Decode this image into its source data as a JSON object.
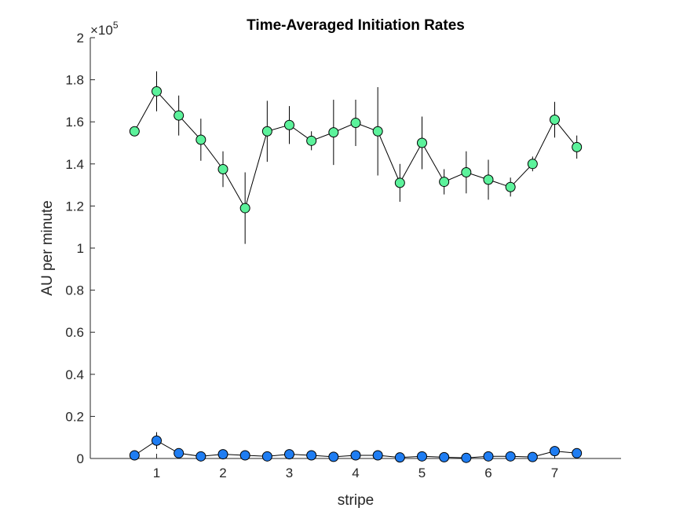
{
  "chart_data": {
    "type": "scatter",
    "title": "Time-Averaged Initiation Rates",
    "xlabel": "stripe",
    "ylabel": "AU per minute",
    "y_exponent_label": "×10",
    "y_exponent": "5",
    "xlim": [
      0,
      8
    ],
    "ylim": [
      0,
      200000
    ],
    "x_ticks": [
      1,
      2,
      3,
      4,
      5,
      6,
      7
    ],
    "x_tick_labels": [
      "1",
      "2",
      "3",
      "4",
      "5",
      "6",
      "7"
    ],
    "y_ticks": [
      0,
      20000,
      40000,
      60000,
      80000,
      100000,
      120000,
      140000,
      160000,
      180000,
      200000
    ],
    "y_tick_labels": [
      "0",
      "0.2",
      "0.4",
      "0.6",
      "0.8",
      "1",
      "1.2",
      "1.4",
      "1.6",
      "1.8",
      "2"
    ],
    "grid": false,
    "legend": "none",
    "x": [
      0.6667,
      1.0,
      1.3333,
      1.6667,
      2.0,
      2.3333,
      2.6667,
      3.0,
      3.3333,
      3.6667,
      4.0,
      4.3333,
      4.6667,
      5.0,
      5.3333,
      5.6667,
      6.0,
      6.3333,
      6.6667,
      7.0,
      7.3333
    ],
    "series": [
      {
        "color": "#5cf29b",
        "values": [
          155500,
          174500,
          163000,
          151500,
          137500,
          119000,
          155500,
          158500,
          151000,
          155000,
          159500,
          155500,
          131000,
          150000,
          131500,
          136000,
          132500,
          129000,
          140000,
          161000,
          148000
        ],
        "error": [
          0,
          9500,
          9500,
          10000,
          8500,
          17000,
          14500,
          9000,
          4500,
          15500,
          11000,
          21000,
          9000,
          12500,
          6000,
          10000,
          9500,
          4500,
          3500,
          8500,
          5500
        ]
      },
      {
        "color": "#1f7df2",
        "values": [
          1500,
          8500,
          2500,
          1000,
          2000,
          1500,
          1000,
          2000,
          1500,
          800,
          1500,
          1500,
          500,
          1000,
          600,
          300,
          1000,
          1000,
          700,
          3500,
          2500
        ],
        "error": [
          0,
          4000,
          800,
          800,
          800,
          800,
          800,
          800,
          800,
          800,
          800,
          800,
          500,
          500,
          500,
          300,
          500,
          500,
          500,
          1000,
          800
        ]
      }
    ]
  }
}
